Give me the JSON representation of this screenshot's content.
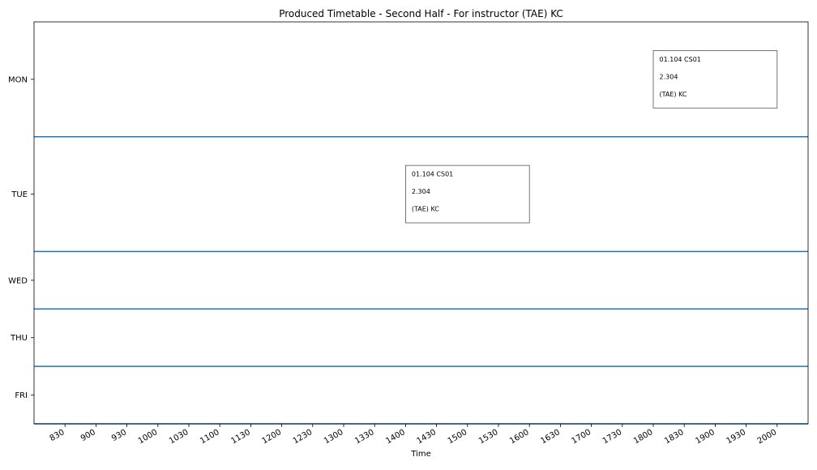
{
  "chart_data": {
    "type": "timetable",
    "title": "Produced Timetable - Second Half - For instructor (TAE) KC",
    "xlabel": "Time",
    "ylabel": "",
    "xlim": [
      800,
      2030
    ],
    "x_ticks": [
      "830",
      "900",
      "930",
      "1000",
      "1030",
      "1100",
      "1130",
      "1200",
      "1230",
      "1300",
      "1330",
      "1400",
      "1430",
      "1500",
      "1530",
      "1600",
      "1630",
      "1700",
      "1730",
      "1800",
      "1830",
      "1900",
      "1930",
      "2000"
    ],
    "days": [
      {
        "label": "MON",
        "rows": 2
      },
      {
        "label": "TUE",
        "rows": 2
      },
      {
        "label": "WED",
        "rows": 1
      },
      {
        "label": "THU",
        "rows": 1
      },
      {
        "label": "FRI",
        "rows": 1
      }
    ],
    "events": [
      {
        "day": "MON",
        "start": "1800",
        "end": "2000",
        "lines": [
          "01.104 CS01",
          "2.304",
          "(TAE) KC"
        ]
      },
      {
        "day": "TUE",
        "start": "1400",
        "end": "1600",
        "lines": [
          "01.104 CS01",
          "2.304",
          "(TAE) KC"
        ]
      }
    ],
    "grid": false,
    "colors": {
      "separator": "#1f77b4",
      "event_border": "#555555"
    }
  }
}
